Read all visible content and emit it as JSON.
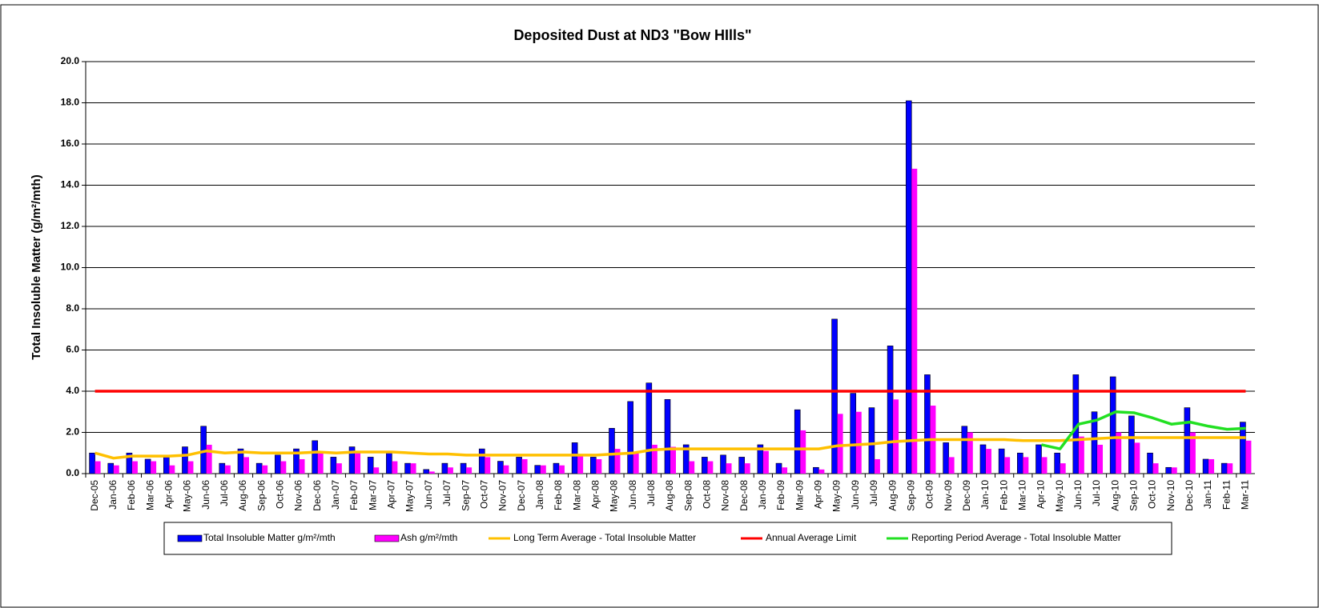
{
  "chart_data": {
    "type": "bar",
    "title": "Deposited Dust at ND3 \"Bow HIlls\"",
    "y_label": "Total Insoluble Matter  (g/m²/mth)",
    "categories": [
      "Dec-05",
      "Jan-06",
      "Feb-06",
      "Mar-06",
      "Apr-06",
      "May-06",
      "Jun-06",
      "Jul-06",
      "Aug-06",
      "Sep-06",
      "Oct-06",
      "Nov-06",
      "Dec-06",
      "Jan-07",
      "Feb-07",
      "Mar-07",
      "Apr-07",
      "May-07",
      "Jun-07",
      "Jul-07",
      "Sep-07",
      "Oct-07",
      "Nov-07",
      "Dec-07",
      "Jan-08",
      "Feb-08",
      "Mar-08",
      "Apr-08",
      "May-08",
      "Jun-08",
      "Jul-08",
      "Aug-08",
      "Sep-08",
      "Oct-08",
      "Nov-08",
      "Dec-08",
      "Jan-09",
      "Feb-09",
      "Mar-09",
      "Apr-09",
      "May-09",
      "Jun-09",
      "Jul-09",
      "Aug-09",
      "Sep-09",
      "Oct-09",
      "Nov-09",
      "Dec-09",
      "Jan-10",
      "Feb-10",
      "Mar-10",
      "Apr-10",
      "May-10",
      "Jun-10",
      "Jul-10",
      "Aug-10",
      "Sep-10",
      "Oct-10",
      "Nov-10",
      "Dec-10",
      "Jan-11",
      "Feb-11",
      "Mar-11"
    ],
    "series": [
      {
        "name": "Total Insoluble Matter  g/m²/mth",
        "type": "bar",
        "color": "#0000ff",
        "values": [
          1.0,
          0.5,
          1.0,
          0.7,
          0.8,
          1.3,
          2.3,
          0.5,
          1.2,
          0.5,
          0.9,
          1.2,
          1.6,
          0.8,
          1.3,
          0.8,
          1.0,
          0.5,
          0.2,
          0.5,
          0.5,
          1.2,
          0.6,
          0.8,
          0.4,
          0.5,
          1.5,
          0.8,
          2.2,
          3.5,
          4.4,
          3.6,
          1.4,
          0.8,
          0.9,
          0.8,
          1.4,
          0.5,
          3.1,
          0.3,
          7.5,
          3.9,
          3.2,
          6.2,
          18.1,
          4.8,
          1.5,
          2.3,
          1.4,
          1.2,
          1.0,
          1.4,
          1.0,
          4.8,
          3.0,
          4.7,
          2.8,
          1.0,
          0.3,
          3.2,
          0.7,
          0.5,
          2.5
        ]
      },
      {
        "name": "Ash  g/m²/mth",
        "type": "bar",
        "color": "#ff00ff",
        "values": [
          0.6,
          0.4,
          0.6,
          0.6,
          0.4,
          0.6,
          1.4,
          0.4,
          0.8,
          0.4,
          0.6,
          0.7,
          1.0,
          0.5,
          1.0,
          0.3,
          0.6,
          0.5,
          0.1,
          0.3,
          0.3,
          0.8,
          0.4,
          0.7,
          0.4,
          0.4,
          0.9,
          0.7,
          1.2,
          1.0,
          1.4,
          1.3,
          0.6,
          0.6,
          0.5,
          0.5,
          1.1,
          0.3,
          2.1,
          0.2,
          2.9,
          3.0,
          0.7,
          3.6,
          14.8,
          3.3,
          0.8,
          2.0,
          1.2,
          0.8,
          0.8,
          0.8,
          0.5,
          1.8,
          1.4,
          2.0,
          1.5,
          0.5,
          0.3,
          2.0,
          0.7,
          0.5,
          1.6
        ]
      },
      {
        "name": "Long Term Average - Total Insoluble Matter",
        "type": "line",
        "color": "#ffc000",
        "values": [
          1.0,
          0.75,
          0.85,
          0.85,
          0.85,
          0.9,
          1.1,
          1.0,
          1.05,
          1.0,
          1.0,
          1.0,
          1.05,
          1.0,
          1.05,
          1.05,
          1.05,
          1.0,
          0.95,
          0.95,
          0.9,
          0.9,
          0.9,
          0.9,
          0.9,
          0.9,
          0.9,
          0.9,
          0.95,
          1.0,
          1.15,
          1.2,
          1.2,
          1.2,
          1.2,
          1.2,
          1.2,
          1.2,
          1.2,
          1.2,
          1.35,
          1.4,
          1.45,
          1.55,
          1.6,
          1.65,
          1.65,
          1.65,
          1.65,
          1.65,
          1.6,
          1.6,
          1.6,
          1.65,
          1.7,
          1.75,
          1.75,
          1.75,
          1.75,
          1.75,
          1.75,
          1.75,
          1.75
        ]
      },
      {
        "name": "Annual Average Limit",
        "type": "line",
        "color": "#ff0000",
        "values": [
          4.0,
          4.0,
          4.0,
          4.0,
          4.0,
          4.0,
          4.0,
          4.0,
          4.0,
          4.0,
          4.0,
          4.0,
          4.0,
          4.0,
          4.0,
          4.0,
          4.0,
          4.0,
          4.0,
          4.0,
          4.0,
          4.0,
          4.0,
          4.0,
          4.0,
          4.0,
          4.0,
          4.0,
          4.0,
          4.0,
          4.0,
          4.0,
          4.0,
          4.0,
          4.0,
          4.0,
          4.0,
          4.0,
          4.0,
          4.0,
          4.0,
          4.0,
          4.0,
          4.0,
          4.0,
          4.0,
          4.0,
          4.0,
          4.0,
          4.0,
          4.0,
          4.0,
          4.0,
          4.0,
          4.0,
          4.0,
          4.0,
          4.0,
          4.0,
          4.0,
          4.0,
          4.0,
          4.0
        ]
      },
      {
        "name": "Reporting Period Average - Total Insoluble Matter",
        "type": "line",
        "color": "#22e022",
        "values": [
          null,
          null,
          null,
          null,
          null,
          null,
          null,
          null,
          null,
          null,
          null,
          null,
          null,
          null,
          null,
          null,
          null,
          null,
          null,
          null,
          null,
          null,
          null,
          null,
          null,
          null,
          null,
          null,
          null,
          null,
          null,
          null,
          null,
          null,
          null,
          null,
          null,
          null,
          null,
          null,
          null,
          null,
          null,
          null,
          null,
          null,
          null,
          null,
          null,
          null,
          null,
          1.4,
          1.2,
          2.4,
          2.6,
          3.0,
          2.95,
          2.7,
          2.4,
          2.5,
          2.3,
          2.15,
          2.2
        ]
      }
    ],
    "ylim": [
      0,
      20
    ],
    "yticks": [
      {
        "value": 0,
        "label": "0.0"
      },
      {
        "value": 2,
        "label": "2.0"
      },
      {
        "value": 4,
        "label": "4.0"
      },
      {
        "value": 6,
        "label": "6.0"
      },
      {
        "value": 8,
        "label": "8.0"
      },
      {
        "value": 10,
        "label": "10.0"
      },
      {
        "value": 12,
        "label": "12.0"
      },
      {
        "value": 14,
        "label": "14.0"
      },
      {
        "value": 16,
        "label": "16.0"
      },
      {
        "value": 18,
        "label": "18.0"
      },
      {
        "value": 20,
        "label": "20.0"
      }
    ],
    "grid": true,
    "legend": "bottom"
  }
}
